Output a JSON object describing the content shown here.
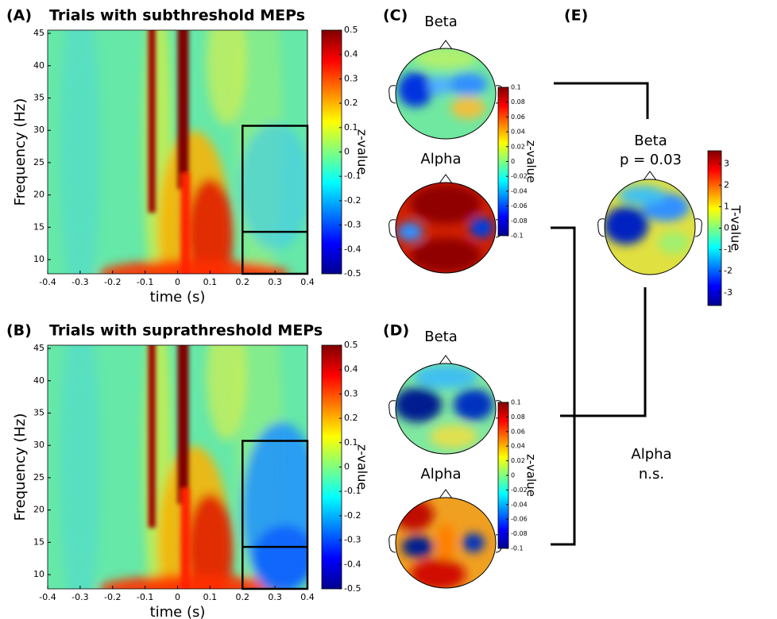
{
  "heatmaps": [
    {
      "label": "(A)",
      "title": "Trials with subthreshold MEPs",
      "ylabel": "Frequency (Hz)",
      "xlabel": "time (s)",
      "xlim": [
        -0.4,
        0.4
      ],
      "xticks": [
        -0.4,
        -0.3,
        -0.2,
        -0.1,
        0,
        0.1,
        0.2,
        0.3,
        0.4
      ],
      "ylim": [
        7.8,
        45.5
      ],
      "yticks": [
        10,
        15,
        20,
        25,
        30,
        35,
        40,
        45
      ],
      "colorbar": {
        "label": "z-value",
        "lim": [
          -0.5,
          0.5
        ],
        "ticks": [
          -0.5,
          -0.4,
          -0.3,
          -0.2,
          -0.1,
          0,
          0.1,
          0.2,
          0.3,
          0.4,
          0.5
        ]
      }
    },
    {
      "label": "(B)",
      "title": "Trials with suprathreshold MEPs",
      "ylabel": "Frequency (Hz)",
      "xlabel": "time (s)",
      "xlim": [
        -0.4,
        0.4
      ],
      "xticks": [
        -0.4,
        -0.3,
        -0.2,
        -0.1,
        0,
        0.1,
        0.2,
        0.3,
        0.4
      ],
      "ylim": [
        7.8,
        45.5
      ],
      "yticks": [
        10,
        15,
        20,
        25,
        30,
        35,
        40,
        45
      ],
      "colorbar": {
        "label": "z-value",
        "lim": [
          -0.5,
          0.5
        ],
        "ticks": [
          -0.5,
          -0.4,
          -0.3,
          -0.2,
          -0.1,
          0,
          0.1,
          0.2,
          0.3,
          0.4,
          0.5
        ]
      }
    }
  ],
  "topoplots": [
    {
      "label": "(C)",
      "maps": [
        "Beta",
        "Alpha"
      ],
      "colorbar": {
        "label": "z-value",
        "lim": [
          -0.1,
          0.1
        ],
        "ticks": [
          -0.1,
          -0.08,
          -0.06,
          -0.04,
          -0.02,
          0,
          0.02,
          0.04,
          0.06,
          0.08,
          0.1
        ]
      }
    },
    {
      "label": "(D)",
      "maps": [
        "Beta",
        "Alpha"
      ],
      "colorbar": {
        "label": "z-value",
        "lim": [
          -0.1,
          0.1
        ],
        "ticks": [
          -0.1,
          -0.08,
          -0.06,
          -0.04,
          -0.02,
          0,
          0.02,
          0.04,
          0.06,
          0.08,
          0.1
        ]
      }
    }
  ],
  "stats": {
    "label": "(E)",
    "beta": "Beta",
    "p": "p = 0.03",
    "alpha": "Alpha",
    "result": "n.s.",
    "colorbar": {
      "label": "T-value",
      "lim": [
        -3.6,
        3.6
      ],
      "ticks": [
        -3,
        -2,
        -1,
        0,
        1,
        2,
        3
      ]
    }
  }
}
